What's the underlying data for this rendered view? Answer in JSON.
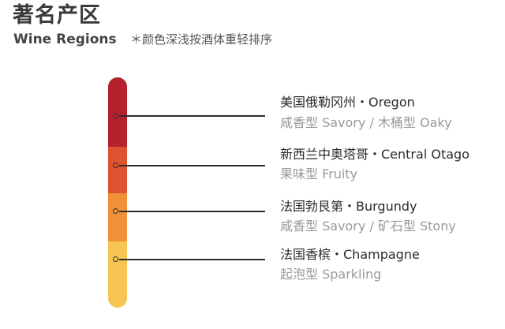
{
  "header": {
    "title_zh": "著名产区",
    "title_en": "Wine Regions",
    "note": "＊颜色深浅按酒体重轻排序"
  },
  "scale": {
    "colors": [
      "#b3222d",
      "#dd5330",
      "#f0913a",
      "#f7c553"
    ]
  },
  "regions": [
    {
      "name": "美国俄勒冈州・Oregon",
      "style": "咸香型  Savory / 木桶型  Oaky",
      "color": "#b3222d"
    },
    {
      "name": "新西兰中奥塔哥・Central Otago",
      "style": "果味型  Fruity",
      "color": "#dd5330"
    },
    {
      "name": "法国勃艮第・Burgundy",
      "style": "咸香型  Savory / 矿石型  Stony",
      "color": "#f0913a"
    },
    {
      "name": "法国香槟・Champagne",
      "style": "起泡型  Sparkling",
      "color": "#f7c553"
    }
  ]
}
